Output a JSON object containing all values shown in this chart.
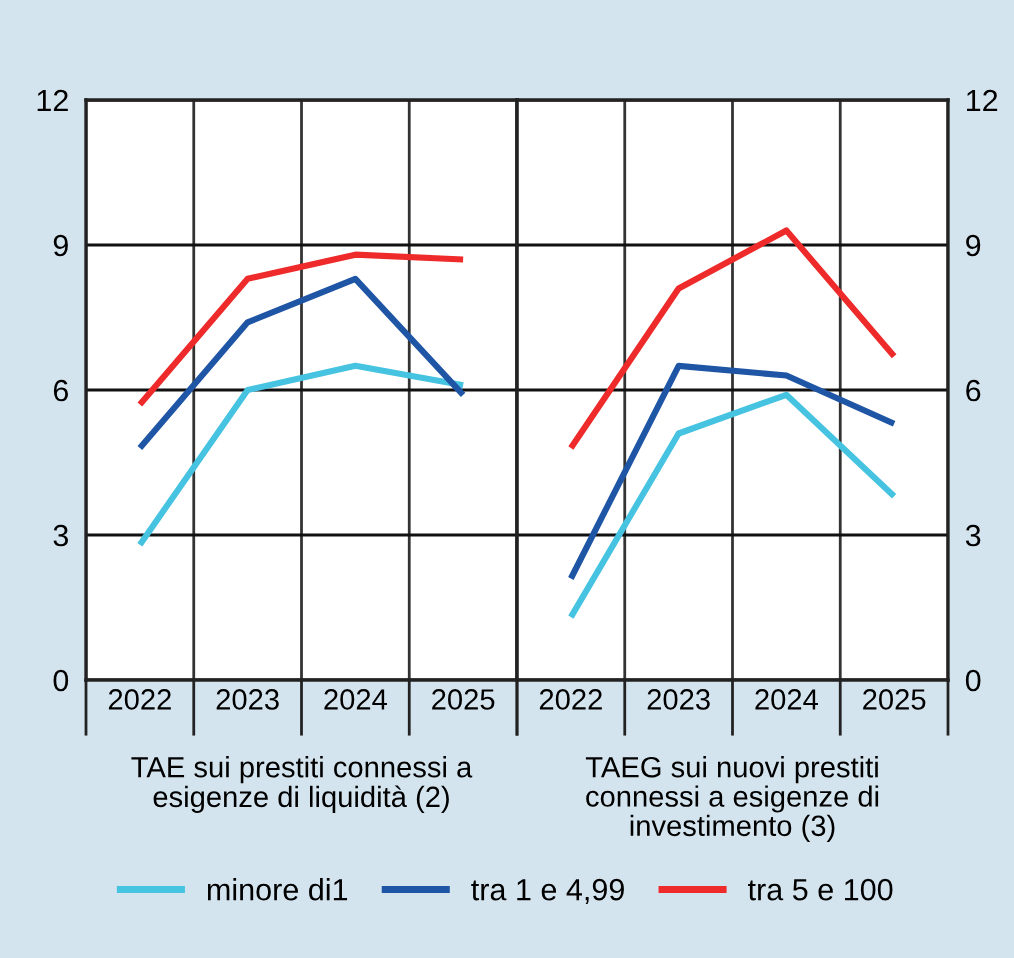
{
  "chart_data": [
    {
      "type": "line",
      "categories": [
        "2022",
        "2023",
        "2024",
        "2025"
      ],
      "xlabel": "TAE sui prestiti connessi a\nesigenze di liquidità (2)",
      "ylim": [
        0,
        12
      ],
      "yticks": [
        0,
        3,
        6,
        9,
        12
      ],
      "grid": true,
      "legend": "bottom",
      "line_style": "solid",
      "series": [
        {
          "name": "minore di1",
          "color": "#45c3e0",
          "values": [
            2.8,
            6.0,
            6.5,
            6.1
          ]
        },
        {
          "name": "tra 1 e 4,99",
          "color": "#1f55a5",
          "values": [
            4.8,
            7.4,
            8.3,
            5.9
          ]
        },
        {
          "name": "tra 5 e 100",
          "color": "#ee2a2a",
          "values": [
            5.7,
            8.3,
            8.8,
            8.7
          ]
        }
      ]
    },
    {
      "type": "line",
      "categories": [
        "2022",
        "2023",
        "2024",
        "2025"
      ],
      "xlabel": "TAEG sui nuovi prestiti\nconnessi a esigenze di\ninvestimento (3)",
      "ylim": [
        0,
        12
      ],
      "yticks": [
        0,
        3,
        6,
        9,
        12
      ],
      "grid": true,
      "line_style": "solid",
      "series": [
        {
          "color": "#45c3e0",
          "values": [
            1.3,
            5.1,
            5.9,
            3.8
          ]
        },
        {
          "color": "#1f55a5",
          "values": [
            2.1,
            6.5,
            6.3,
            5.3
          ]
        },
        {
          "color": "#ee2a2a",
          "values": [
            4.8,
            8.1,
            9.3,
            6.7
          ]
        }
      ]
    }
  ]
}
